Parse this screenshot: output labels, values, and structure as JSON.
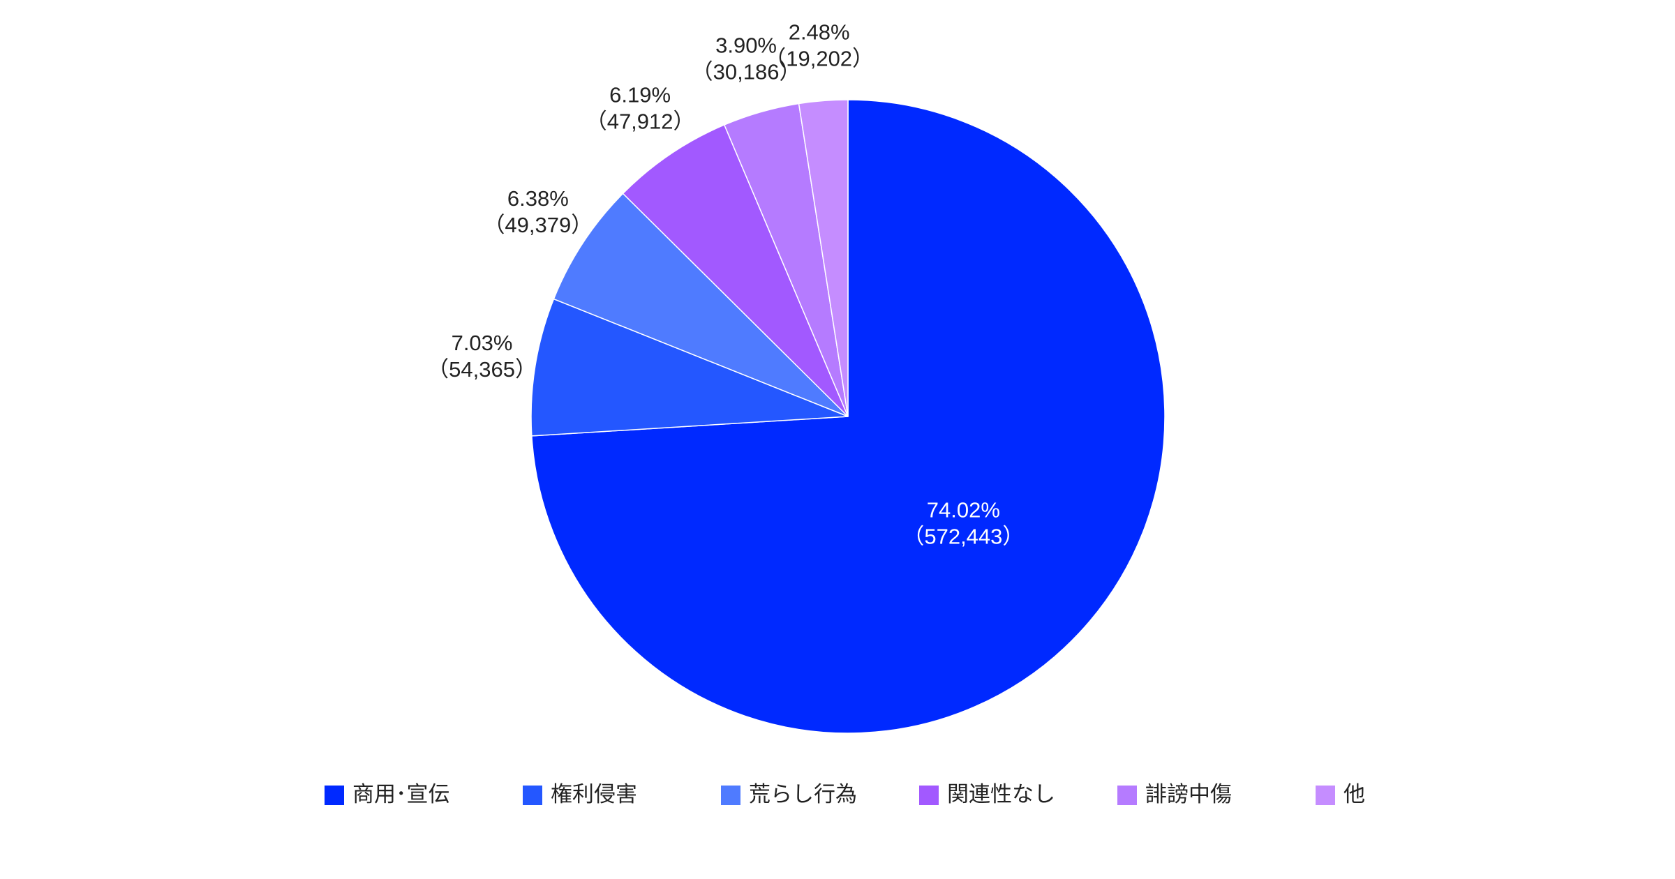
{
  "chart_data": {
    "type": "pie",
    "categories": [
      "商用･宣伝",
      "権利侵害",
      "荒らし行為",
      "関連性なし",
      "誹謗中傷",
      "他"
    ],
    "values": [
      74.02,
      7.03,
      6.38,
      6.19,
      3.9,
      2.48
    ],
    "value_labels": [
      "74.02%",
      "7.03%",
      "6.38%",
      "6.19%",
      "3.90%",
      "2.48%"
    ],
    "counts": [
      572443,
      54365,
      49379,
      47912,
      30186,
      19202
    ],
    "count_labels": [
      "（572,443）",
      "（54,365）",
      "（49,379）",
      "（47,912）",
      "（30,186）",
      "（19,202）"
    ],
    "colors": [
      "#0029ff",
      "#2457ff",
      "#4f7bff",
      "#a259ff",
      "#b57bff",
      "#c58dff"
    ],
    "legend": "bottom"
  }
}
